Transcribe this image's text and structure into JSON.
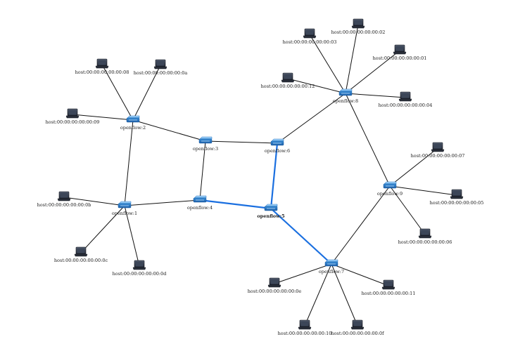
{
  "switches": [
    {
      "id": "s1",
      "label": "openflow:1"
    },
    {
      "id": "s2",
      "label": "openflow:2"
    },
    {
      "id": "s3",
      "label": "openflow:3"
    },
    {
      "id": "s4",
      "label": "openflow:4"
    },
    {
      "id": "s5",
      "label": "openflow:5",
      "selected": true
    },
    {
      "id": "s6",
      "label": "openflow:6"
    },
    {
      "id": "s7",
      "label": "openflow:7"
    },
    {
      "id": "s8",
      "label": "openflow:8"
    },
    {
      "id": "s9",
      "label": "openflow:9"
    }
  ],
  "hosts": [
    {
      "id": "h01",
      "label": "host:00:00:00:00:00:01"
    },
    {
      "id": "h02",
      "label": "host:00:00:00:00:00:02"
    },
    {
      "id": "h03",
      "label": "host:00:00:00:00:00:03"
    },
    {
      "id": "h04",
      "label": "host:00:00:00:00:00:04"
    },
    {
      "id": "h05",
      "label": "host:00:00:00:00:00:05"
    },
    {
      "id": "h06",
      "label": "host:00:00:00:00:00:06"
    },
    {
      "id": "h07",
      "label": "host:00:00:00:00:00:07"
    },
    {
      "id": "h08",
      "label": "host:00:00:00:00:00:08"
    },
    {
      "id": "h09",
      "label": "host:00:00:00:00:00:09"
    },
    {
      "id": "h0a",
      "label": "host:00:00:00:00:00:0a"
    },
    {
      "id": "h0b",
      "label": "host:00:00:00:00:00:0b"
    },
    {
      "id": "h0c",
      "label": "host:00:00:00:00:00:0c"
    },
    {
      "id": "h0d",
      "label": "host:00:00:00:00:00:0d"
    },
    {
      "id": "h0e",
      "label": "host:00:00:00:00:00:0e"
    },
    {
      "id": "h0f",
      "label": "host:00:00:00:00:00:0f"
    },
    {
      "id": "h10",
      "label": "host:00:00:00:00:00:10"
    },
    {
      "id": "h11",
      "label": "host:00:00:00:00:00:11"
    },
    {
      "id": "h12",
      "label": "host:00:00:00:00:00:12"
    }
  ],
  "links": [
    {
      "a": "s1",
      "b": "s2"
    },
    {
      "a": "s1",
      "b": "s4"
    },
    {
      "a": "s2",
      "b": "s3"
    },
    {
      "a": "s3",
      "b": "s4"
    },
    {
      "a": "s3",
      "b": "s6"
    },
    {
      "a": "s4",
      "b": "s5",
      "highlight": true
    },
    {
      "a": "s5",
      "b": "s6",
      "highlight": true
    },
    {
      "a": "s5",
      "b": "s7",
      "highlight": true
    },
    {
      "a": "s6",
      "b": "s8"
    },
    {
      "a": "s8",
      "b": "s9"
    },
    {
      "a": "s9",
      "b": "s7"
    },
    {
      "a": "s2",
      "b": "h08"
    },
    {
      "a": "s2",
      "b": "h0a"
    },
    {
      "a": "s2",
      "b": "h09"
    },
    {
      "a": "s1",
      "b": "h0b"
    },
    {
      "a": "s1",
      "b": "h0c"
    },
    {
      "a": "s1",
      "b": "h0d"
    },
    {
      "a": "s8",
      "b": "h03"
    },
    {
      "a": "s8",
      "b": "h02"
    },
    {
      "a": "s8",
      "b": "h01"
    },
    {
      "a": "s8",
      "b": "h12"
    },
    {
      "a": "s8",
      "b": "h04"
    },
    {
      "a": "s9",
      "b": "h07"
    },
    {
      "a": "s9",
      "b": "h05"
    },
    {
      "a": "s9",
      "b": "h06"
    },
    {
      "a": "s7",
      "b": "h0e"
    },
    {
      "a": "s7",
      "b": "h10"
    },
    {
      "a": "s7",
      "b": "h0f"
    },
    {
      "a": "s7",
      "b": "h11"
    }
  ],
  "colors": {
    "highlight": "#1a6fe0",
    "edge": "#111111",
    "switch": "#3a8fd8",
    "host": "#2a2f3a"
  }
}
